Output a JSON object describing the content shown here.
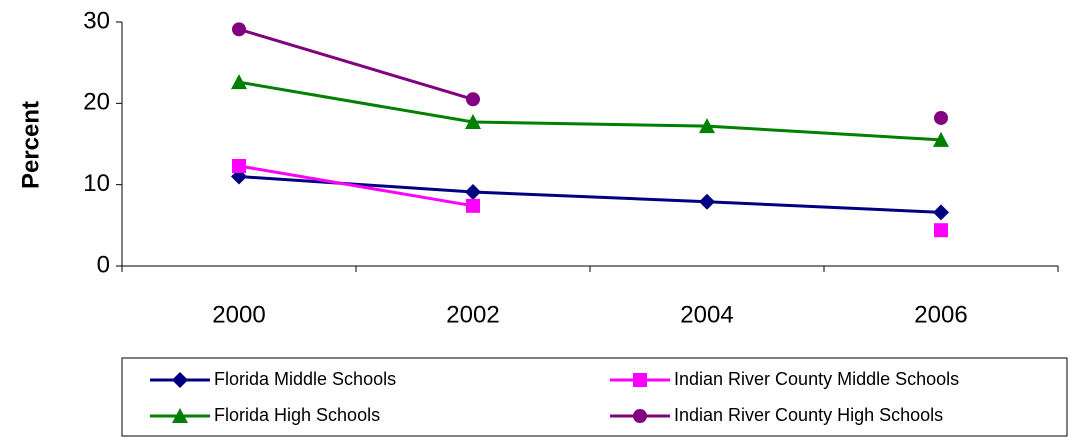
{
  "chart_data": {
    "type": "line",
    "y_label": "Percent",
    "categories": [
      "2000",
      "2002",
      "2004",
      "2006"
    ],
    "series": [
      {
        "name": "Florida Middle Schools",
        "color": "#000080",
        "marker": "diamond",
        "values": [
          11.0,
          9.1,
          7.9,
          6.6
        ]
      },
      {
        "name": "Indian River County Middle Schools",
        "color": "#ff00ff",
        "marker": "square",
        "values": [
          12.3,
          7.4,
          null,
          4.4
        ]
      },
      {
        "name": "Florida High Schools",
        "color": "#008000",
        "marker": "triangle",
        "values": [
          22.6,
          17.7,
          17.2,
          15.5
        ]
      },
      {
        "name": "Indian River County High Schools",
        "color": "#800080",
        "marker": "circle",
        "values": [
          29.1,
          20.5,
          null,
          18.2
        ]
      }
    ],
    "ylim": [
      0,
      30
    ],
    "yticks": [
      0,
      10,
      20,
      30
    ],
    "grid": false,
    "legend": "bottom"
  }
}
